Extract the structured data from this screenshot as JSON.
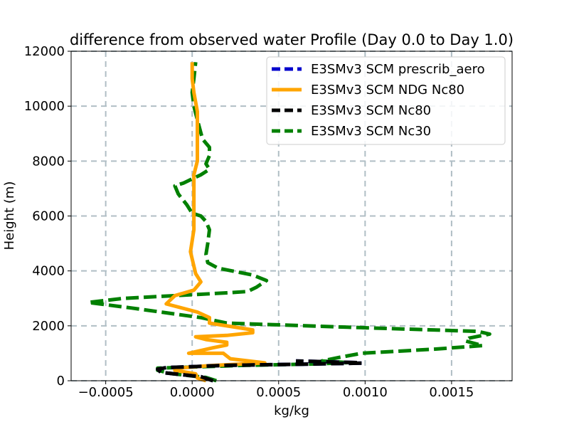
{
  "chart_data": {
    "type": "line",
    "title": "difference from observed water Profile (Day 0.0 to Day 1.0)",
    "xlabel": "kg/kg",
    "ylabel": "Height (m)",
    "xlim": [
      -0.0007,
      0.00185
    ],
    "ylim": [
      0,
      12000
    ],
    "xticks": [
      -0.0005,
      0.0,
      0.0005,
      0.001,
      0.0015
    ],
    "xtick_labels": [
      "−0.0005",
      "0.0000",
      "0.0005",
      "0.0010",
      "0.0015"
    ],
    "yticks": [
      0,
      2000,
      4000,
      6000,
      8000,
      10000,
      12000
    ],
    "ytick_labels": [
      "0",
      "2000",
      "4000",
      "6000",
      "8000",
      "10000",
      "12000"
    ],
    "grid": true,
    "legend_position": "top-right",
    "series": [
      {
        "name": "E3SMv3 SCM prescrib_aero",
        "color": "#0000cc",
        "style": "dashed",
        "points": [
          [
            0.00012,
            0
          ],
          [
            5e-05,
            150
          ],
          [
            -0.00018,
            300
          ],
          [
            -0.0002,
            420
          ],
          [
            -0.00015,
            480
          ],
          [
            0.0002,
            560
          ],
          [
            0.0006,
            600
          ],
          [
            0.00098,
            640
          ],
          [
            0.00095,
            660
          ],
          [
            0.0006,
            720
          ]
        ]
      },
      {
        "name": "E3SMv3 SCM NDG Nc80",
        "color": "#ffa500",
        "style": "solid",
        "points": [
          [
            8e-05,
            0
          ],
          [
            3e-05,
            100
          ],
          [
            2e-05,
            250
          ],
          [
            -0.0001,
            380
          ],
          [
            -0.0001,
            450
          ],
          [
            0.0001,
            550
          ],
          [
            0.00042,
            650
          ],
          [
            0.00022,
            800
          ],
          [
            0.00018,
            1000
          ],
          [
            -2e-05,
            1000
          ],
          [
            0.00012,
            1200
          ],
          [
            0.0002,
            1300
          ],
          [
            0.0002,
            1400
          ],
          [
            8e-05,
            1500
          ],
          [
            2e-05,
            1600
          ],
          [
            0.0002,
            1650
          ],
          [
            0.00035,
            1750
          ],
          [
            0.00035,
            1850
          ],
          [
            0.0001,
            2100
          ],
          [
            0.0001,
            2300
          ],
          [
            3e-05,
            2500
          ],
          [
            -0.00015,
            2800
          ],
          [
            -0.0001,
            3100
          ],
          [
            1e-05,
            3300
          ],
          [
            5e-05,
            3600
          ],
          [
            2e-05,
            3900
          ],
          [
            -1e-05,
            4700
          ],
          [
            1e-05,
            5500
          ],
          [
            1e-05,
            6500
          ],
          [
            1e-05,
            7500
          ],
          [
            3e-05,
            8000
          ],
          [
            3e-05,
            8800
          ],
          [
            3e-05,
            9800
          ],
          [
            1e-05,
            10500
          ],
          [
            0.0,
            11000
          ],
          [
            0.0,
            11600
          ]
        ]
      },
      {
        "name": "E3SMv3 SCM Nc80",
        "color": "#000000",
        "style": "dashed",
        "points": [
          [
            0.00012,
            0
          ],
          [
            5e-05,
            150
          ],
          [
            -0.00018,
            300
          ],
          [
            -0.0002,
            420
          ],
          [
            -0.00015,
            480
          ],
          [
            0.0002,
            560
          ],
          [
            0.0006,
            600
          ],
          [
            0.00098,
            640
          ],
          [
            0.00095,
            660
          ],
          [
            0.0006,
            720
          ]
        ]
      },
      {
        "name": "E3SMv3 SCM Nc30",
        "color": "#008000",
        "style": "dashed",
        "points": [
          [
            0.00014,
            0
          ],
          [
            8e-05,
            120
          ],
          [
            -0.00012,
            260
          ],
          [
            -0.0002,
            380
          ],
          [
            -0.0002,
            460
          ],
          [
            0.0003,
            560
          ],
          [
            0.0007,
            610
          ],
          [
            0.0009,
            660
          ],
          [
            0.00075,
            720
          ],
          [
            0.00085,
            850
          ],
          [
            0.00098,
            1000
          ],
          [
            0.0014,
            1150
          ],
          [
            0.00168,
            1280
          ],
          [
            0.00158,
            1450
          ],
          [
            0.0016,
            1550
          ],
          [
            0.00172,
            1700
          ],
          [
            0.00165,
            1800
          ],
          [
            0.0009,
            1950
          ],
          [
            0.0002,
            2100
          ],
          [
            5e-05,
            2300
          ],
          [
            -0.00035,
            2650
          ],
          [
            -0.0006,
            2850
          ],
          [
            -0.0004,
            3000
          ],
          [
            -0.0001,
            3100
          ],
          [
            5e-05,
            3150
          ],
          [
            0.0002,
            3200
          ],
          [
            0.00032,
            3250
          ],
          [
            0.00037,
            3400
          ],
          [
            0.00043,
            3650
          ],
          [
            0.00035,
            3850
          ],
          [
            0.00015,
            4100
          ],
          [
            9e-05,
            4300
          ],
          [
            8e-05,
            4600
          ],
          [
            9e-05,
            5000
          ],
          [
            0.0001,
            5500
          ],
          [
            8e-05,
            5800
          ],
          [
            5e-05,
            6000
          ],
          [
            0.0,
            6100
          ],
          [
            -3e-05,
            6400
          ],
          [
            -8e-05,
            6800
          ],
          [
            -0.0001,
            7100
          ],
          [
            -5e-05,
            7200
          ],
          [
            5e-05,
            7500
          ],
          [
            0.0001,
            7700
          ],
          [
            8e-05,
            7900
          ],
          [
            0.0001,
            8200
          ],
          [
            0.0001,
            8500
          ],
          [
            6e-05,
            8800
          ],
          [
            3e-05,
            9500
          ],
          [
            1e-05,
            10000
          ],
          [
            0.0,
            10500
          ],
          [
            1e-05,
            11000
          ],
          [
            2e-05,
            11600
          ]
        ]
      }
    ]
  }
}
